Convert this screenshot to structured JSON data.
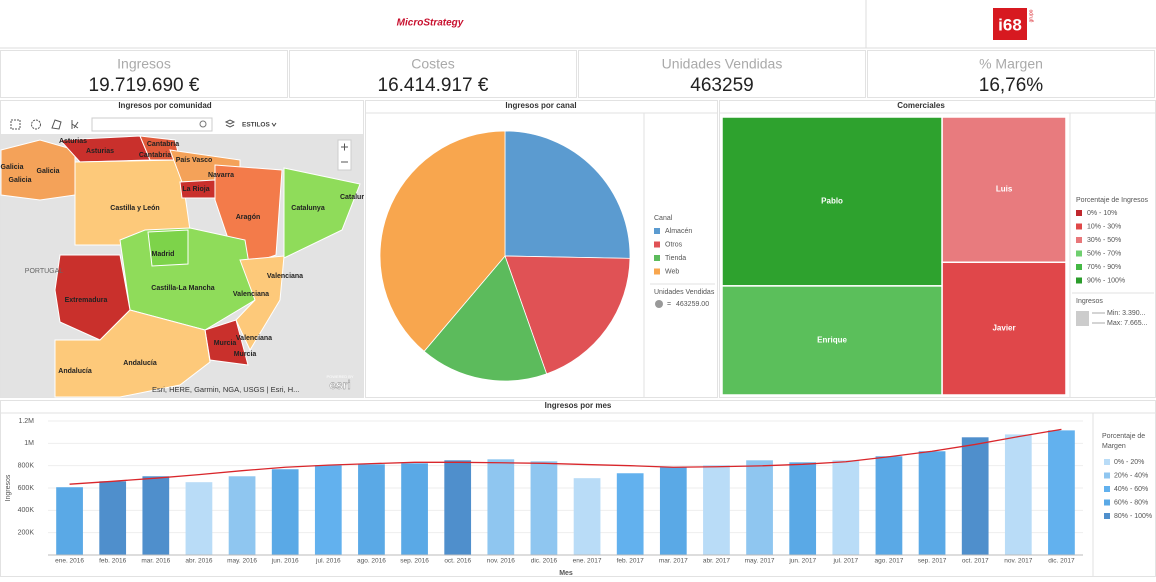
{
  "header": {
    "logo_left": "MicroStrategy",
    "logo_right": "i68",
    "logo_right_tag": "grupo"
  },
  "kpis": [
    {
      "label": "Ingresos",
      "value": "19.719.690 €"
    },
    {
      "label": "Costes",
      "value": "16.414.917 €"
    },
    {
      "label": "Unidades Vendidas",
      "value": "463259"
    },
    {
      "label": "% Margen",
      "value": "16,76%"
    }
  ],
  "map": {
    "title": "Ingresos por comunidad",
    "toolbar_label": "ESTILOS",
    "attribution": "Esri, HERE, Garmin, NGA, USGS | Esri, H...",
    "brand": "esri",
    "brand_tag": "POWERED BY",
    "labels": [
      "Asturias",
      "Asturias",
      "Cantabria",
      "Cantabria",
      "Galicia",
      "Galicia",
      "Galicia",
      "País Vasco",
      "Navarra",
      "La Rioja",
      "Castilla y León",
      "Aragón",
      "Catalunya",
      "Catalur",
      "PORTUGAL",
      "Madrid",
      "Castilla-La Mancha",
      "Extremadura",
      "Valenciana",
      "Valenciana",
      "Valenciana",
      "Murcia",
      "Murcia",
      "Andalucía",
      "Andalucía"
    ]
  },
  "chart_data": [
    {
      "type": "pie",
      "title": "Ingresos por canal",
      "legend_title": "Canal",
      "categories": [
        "Almacén",
        "Otros",
        "Tienda",
        "Web"
      ],
      "values": [
        25.3,
        19.3,
        16.6,
        38.8
      ],
      "colors": [
        "#5b9bd0",
        "#e05255",
        "#5cbb5c",
        "#f8a64e"
      ],
      "size_legend_title": "Unidades Vendidas",
      "size_legend_relation": "=",
      "size_legend_label": "463259.00"
    },
    {
      "type": "treemap",
      "title": "Comerciales",
      "categories": [
        "Pablo",
        "Enrique",
        "Luis",
        "Javier"
      ],
      "values": [
        7665000,
        4950000,
        3710000,
        3390000
      ],
      "colors": [
        "#2ea22e",
        "#5bbf5b",
        "#e87b7e",
        "#e0474a"
      ],
      "legend_title": "Porcentaje de Ingresos",
      "legend": [
        {
          "label": "0% - 10%",
          "color": "#c0272d"
        },
        {
          "label": "10% - 30%",
          "color": "#e04848"
        },
        {
          "label": "30% - 50%",
          "color": "#e8777a"
        },
        {
          "label": "50% - 70%",
          "color": "#6fcf6f"
        },
        {
          "label": "70% - 90%",
          "color": "#44b844"
        },
        {
          "label": "90% - 100%",
          "color": "#2a9c2a"
        }
      ],
      "size_legend_title": "Ingresos",
      "size_legend_min": "Min: 3.390...",
      "size_legend_max": "Max: 7.665..."
    },
    {
      "type": "bar",
      "title": "Ingresos por mes",
      "ylabel": "Ingresos",
      "xlabel": "Mes",
      "categories": [
        "ene. 2016",
        "feb. 2016",
        "mar. 2016",
        "abr. 2016",
        "may. 2016",
        "jun. 2016",
        "jul. 2016",
        "ago. 2016",
        "sep. 2016",
        "oct. 2016",
        "nov. 2016",
        "dic. 2016",
        "ene. 2017",
        "feb. 2017",
        "mar. 2017",
        "abr. 2017",
        "may. 2017",
        "jun. 2017",
        "jul. 2017",
        "ago. 2017",
        "sep. 2017",
        "oct. 2017",
        "nov. 2017",
        "dic. 2017"
      ],
      "values": [
        607000,
        660000,
        705000,
        652000,
        705000,
        768000,
        804000,
        812000,
        821000,
        848000,
        857000,
        839000,
        688000,
        732000,
        786000,
        804000,
        848000,
        830000,
        848000,
        884000,
        929000,
        1054000,
        1080000,
        1116000
      ],
      "colors": [
        "#5aa9e6",
        "#4f8fcc",
        "#4f8fcc",
        "#b9dcf7",
        "#8fc6f0",
        "#5aa9e6",
        "#62b1ee",
        "#5aa9e6",
        "#5aa9e6",
        "#4f8fcc",
        "#8fc6f0",
        "#8fc6f0",
        "#b9dcf7",
        "#62b1ee",
        "#5aa9e6",
        "#b9dcf7",
        "#8fc6f0",
        "#5aa9e6",
        "#b9dcf7",
        "#5aa9e6",
        "#5aa9e6",
        "#4f8fcc",
        "#b9dcf7",
        "#62b1ee"
      ],
      "trend": {
        "color": "#d9262b",
        "values": [
          634000,
          660000,
          688000,
          720000,
          755000,
          786000,
          805000,
          818000,
          830000,
          830000,
          826000,
          821000,
          810000,
          800000,
          786000,
          790000,
          798000,
          812000,
          835000,
          880000,
          929000,
          990000,
          1060000,
          1125000
        ]
      },
      "ylim": [
        0,
        1200000
      ],
      "yticks": [
        {
          "value": 200000,
          "label": "200K"
        },
        {
          "value": 400000,
          "label": "400K"
        },
        {
          "value": 600000,
          "label": "600K"
        },
        {
          "value": 800000,
          "label": "800K"
        },
        {
          "value": 1000000,
          "label": "1M"
        },
        {
          "value": 1200000,
          "label": "1.2M"
        }
      ],
      "legend_title": "Porcentaje de Margen",
      "legend": [
        {
          "label": "0% - 20%",
          "color": "#b9dcf7"
        },
        {
          "label": "20% - 40%",
          "color": "#8fc6f0"
        },
        {
          "label": "40% - 60%",
          "color": "#62b1ee"
        },
        {
          "label": "60% - 80%",
          "color": "#5aa9e6"
        },
        {
          "label": "80% - 100%",
          "color": "#4f8fcc"
        }
      ]
    }
  ]
}
